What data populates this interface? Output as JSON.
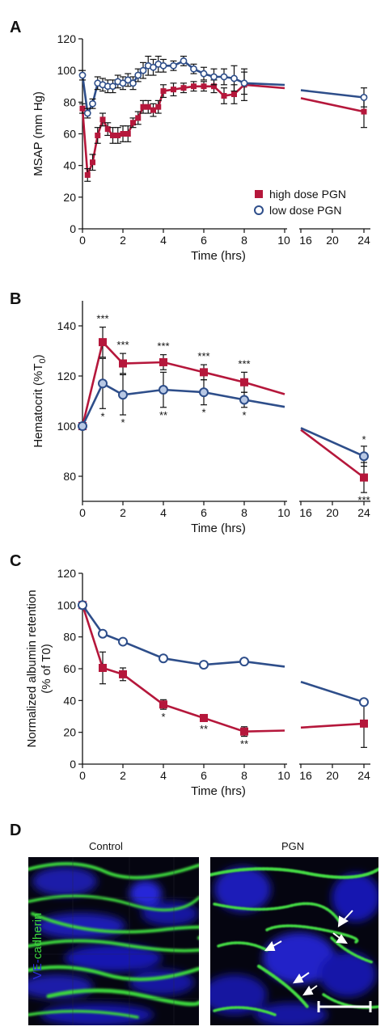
{
  "panels": {
    "A": "A",
    "B": "B",
    "C": "C",
    "D": "D"
  },
  "colors": {
    "high": "#b5173b",
    "low": "#2e4e8a",
    "low_fill": "#b8c8e4",
    "axis": "#111111"
  },
  "chart_data": [
    {
      "type": "line",
      "panel": "A",
      "xlabel": "Time (hrs)",
      "ylabel": "MSAP (mm Hg)",
      "ylim": [
        0,
        120
      ],
      "yticks": [
        "0",
        "20",
        "40",
        "60",
        "80",
        "100",
        "120"
      ],
      "xticks": [
        "0",
        "2",
        "4",
        "6",
        "8",
        "10",
        "16",
        "20",
        "24"
      ],
      "x_axis_break": [
        10,
        16
      ],
      "legend": [
        "high dose PGN",
        "low dose PGN"
      ],
      "legend_position": "bottom-right",
      "series": [
        {
          "name": "high dose PGN",
          "marker": "square",
          "x": [
            0,
            0.25,
            0.5,
            0.75,
            1,
            1.25,
            1.5,
            1.75,
            2,
            2.25,
            2.5,
            2.75,
            3,
            3.25,
            3.5,
            3.75,
            4,
            4.5,
            5,
            5.5,
            6,
            6.5,
            7,
            7.5,
            8,
            24
          ],
          "y": [
            76,
            34,
            42,
            59,
            69,
            63,
            59,
            59,
            60,
            60,
            67,
            70,
            77,
            77,
            75,
            77,
            87,
            88,
            89,
            90,
            90,
            90,
            84,
            85,
            91,
            74
          ],
          "err": [
            3,
            4,
            5,
            5,
            4,
            4,
            5,
            5,
            5,
            5,
            3,
            4,
            4,
            4,
            4,
            4,
            4,
            4,
            3,
            3,
            3,
            4,
            5,
            6,
            10,
            10
          ]
        },
        {
          "name": "low dose PGN",
          "marker": "circle",
          "x": [
            0,
            0.25,
            0.5,
            0.75,
            1,
            1.25,
            1.5,
            1.75,
            2,
            2.25,
            2.5,
            2.75,
            3,
            3.25,
            3.5,
            3.75,
            4,
            4.5,
            5,
            5.5,
            6,
            6.5,
            7,
            7.5,
            8,
            24
          ],
          "y": [
            97,
            73,
            79,
            92,
            91,
            90,
            90,
            93,
            92,
            94,
            92,
            97,
            100,
            103,
            102,
            104,
            103,
            103,
            106,
            101,
            98,
            96,
            96,
            95,
            92,
            83
          ],
          "err": [
            3,
            3,
            3,
            4,
            4,
            4,
            4,
            4,
            4,
            4,
            4,
            4,
            5,
            6,
            5,
            5,
            4,
            3,
            3,
            3,
            4,
            5,
            5,
            8,
            7,
            6
          ]
        }
      ]
    },
    {
      "type": "line",
      "panel": "B",
      "xlabel": "Time (hrs)",
      "ylabel": "Hematocrit (%T",
      "ylabel_sub": "0",
      "ylabel_end": ")",
      "ylim": [
        70,
        150
      ],
      "yticks": [
        "80",
        "100",
        "120",
        "140"
      ],
      "xticks": [
        "0",
        "2",
        "4",
        "6",
        "8",
        "10",
        "16",
        "20",
        "24"
      ],
      "x_axis_break": [
        10,
        16
      ],
      "series": [
        {
          "name": "high dose PGN",
          "marker": "square",
          "x": [
            0,
            1,
            2,
            4,
            6,
            8,
            24
          ],
          "y": [
            100,
            133.5,
            125,
            125.5,
            121.5,
            117.5,
            79.5
          ],
          "err": [
            0,
            6,
            4,
            3,
            3,
            4,
            6
          ],
          "stars": [
            "",
            "***",
            "***",
            "***",
            "***",
            "***",
            "***"
          ]
        },
        {
          "name": "low dose PGN",
          "marker": "circle",
          "x": [
            0,
            1,
            2,
            4,
            6,
            8,
            24
          ],
          "y": [
            100,
            117,
            112.5,
            114.5,
            113.5,
            110.5,
            88
          ],
          "err": [
            0,
            10,
            8,
            7,
            5,
            3,
            4
          ],
          "stars": [
            "",
            "*",
            "*",
            "**",
            "*",
            "*",
            "*"
          ]
        }
      ]
    },
    {
      "type": "line",
      "panel": "C",
      "xlabel": "Time (hrs)",
      "ylabel_line1": "Normalized albumin retention",
      "ylabel_line2": "(% of T0)",
      "ylim": [
        0,
        120
      ],
      "yticks": [
        "0",
        "20",
        "40",
        "60",
        "80",
        "100",
        "120"
      ],
      "xticks": [
        "0",
        "2",
        "4",
        "6",
        "8",
        "10",
        "16",
        "20",
        "24"
      ],
      "x_axis_break": [
        10,
        16
      ],
      "series": [
        {
          "name": "high dose PGN",
          "marker": "square",
          "x": [
            0,
            1,
            2,
            4,
            6,
            8,
            24
          ],
          "y": [
            100,
            60.5,
            56.5,
            37.5,
            29,
            20.5,
            25.5
          ],
          "err": [
            0,
            10,
            4,
            3,
            2,
            3,
            15
          ],
          "stars": [
            "",
            "",
            "",
            "*",
            "**",
            "**",
            ""
          ]
        },
        {
          "name": "low dose PGN",
          "marker": "circle",
          "x": [
            0,
            1,
            2,
            4,
            6,
            8,
            24
          ],
          "y": [
            100,
            82,
            77,
            66.5,
            62.5,
            64.5,
            39
          ],
          "err": [
            0,
            0,
            0,
            0,
            0,
            0,
            0
          ],
          "stars": [
            "",
            "",
            "",
            "",
            "",
            "",
            ""
          ]
        }
      ]
    }
  ],
  "microscopy": {
    "control_label": "Control",
    "pgn_label": "PGN",
    "stain_label_part1": "VE-",
    "stain_label_part2": "cadherin"
  }
}
